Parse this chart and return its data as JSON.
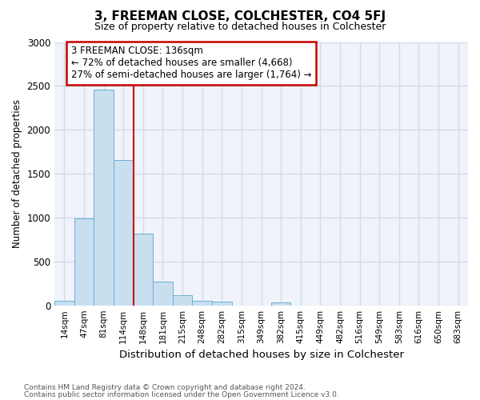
{
  "title": "3, FREEMAN CLOSE, COLCHESTER, CO4 5FJ",
  "subtitle": "Size of property relative to detached houses in Colchester",
  "xlabel": "Distribution of detached houses by size in Colchester",
  "ylabel": "Number of detached properties",
  "bin_labels": [
    "14sqm",
    "47sqm",
    "81sqm",
    "114sqm",
    "148sqm",
    "181sqm",
    "215sqm",
    "248sqm",
    "282sqm",
    "315sqm",
    "349sqm",
    "382sqm",
    "415sqm",
    "449sqm",
    "482sqm",
    "516sqm",
    "549sqm",
    "583sqm",
    "616sqm",
    "650sqm",
    "683sqm"
  ],
  "bar_values": [
    55,
    990,
    2460,
    1660,
    820,
    275,
    120,
    55,
    45,
    0,
    0,
    35,
    0,
    0,
    0,
    0,
    0,
    0,
    0,
    0,
    0
  ],
  "bar_color": "#c8dff0",
  "bar_edge_color": "#6baed6",
  "vline_bin_index": 3.5,
  "vline_color": "#cc0000",
  "annotation_text": "3 FREEMAN CLOSE: 136sqm\n← 72% of detached houses are smaller (4,668)\n27% of semi-detached houses are larger (1,764) →",
  "annotation_box_color": "#cc0000",
  "ylim": [
    0,
    3000
  ],
  "yticks": [
    0,
    500,
    1000,
    1500,
    2000,
    2500,
    3000
  ],
  "background_color": "#ffffff",
  "plot_bg_color": "#f0f4fa",
  "grid_color": "#d0daea",
  "footer_line1": "Contains HM Land Registry data © Crown copyright and database right 2024.",
  "footer_line2": "Contains public sector information licensed under the Open Government Licence v3.0."
}
